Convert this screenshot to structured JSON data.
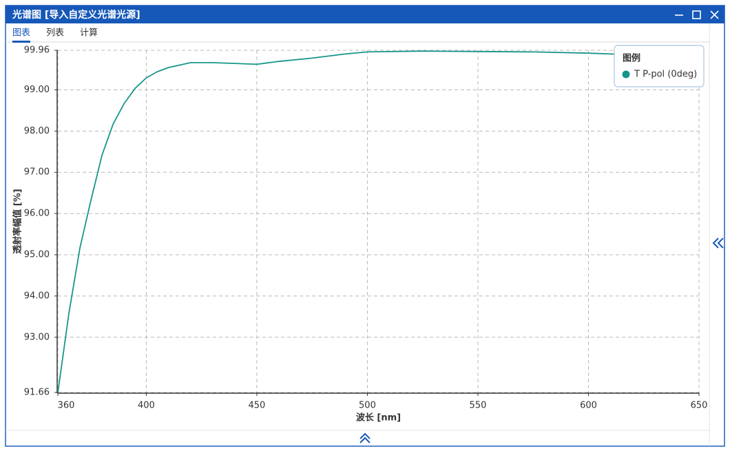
{
  "window": {
    "title": "光谱图 [导入自定义光谱光源]"
  },
  "tabs": [
    "图表",
    "列表",
    "计算"
  ],
  "chart_data": {
    "type": "line",
    "x_label": "波长 [nm]",
    "y_label": "透射率幅值 [%]",
    "legend_title": "图例",
    "legend_position": "upper right",
    "grid": true,
    "xlim": [
      360,
      650
    ],
    "ylim": [
      91.66,
      99.96
    ],
    "xticks": [
      360,
      400,
      450,
      500,
      550,
      600,
      650
    ],
    "yticks": [
      91.66,
      {
        "value": 93,
        "label": "93.00"
      },
      {
        "value": 94,
        "label": "94.00"
      },
      {
        "value": 95,
        "label": "95.00"
      },
      {
        "value": 96,
        "label": "96.00"
      },
      {
        "value": 97,
        "label": "97.00"
      },
      {
        "value": 98,
        "label": "98.00"
      },
      {
        "value": 99,
        "label": "99.00"
      },
      99.96
    ],
    "x": [
      360,
      365,
      370,
      375,
      380,
      385,
      390,
      395,
      400,
      405,
      410,
      420,
      430,
      440,
      450,
      460,
      475,
      490,
      500,
      525,
      550,
      575,
      600,
      625,
      650
    ],
    "series": [
      {
        "name": "T P-pol (0deg)",
        "color": "#17958a",
        "values": [
          91.66,
          93.58,
          95.17,
          96.33,
          97.42,
          98.17,
          98.67,
          99.04,
          99.29,
          99.44,
          99.54,
          99.66,
          99.66,
          99.64,
          99.62,
          99.69,
          99.77,
          99.87,
          99.92,
          99.94,
          99.93,
          99.92,
          99.89,
          99.84,
          99.82
        ]
      }
    ]
  }
}
